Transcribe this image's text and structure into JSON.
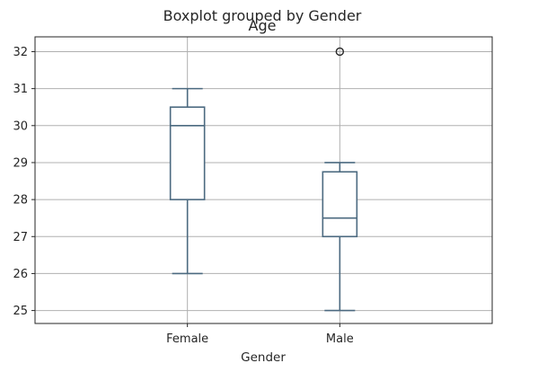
{
  "chart_data": {
    "type": "boxplot",
    "suptitle": "Boxplot grouped by Gender",
    "title": "Age",
    "xlabel": "Gender",
    "ylabel": "",
    "categories": [
      "Female",
      "Male"
    ],
    "boxes": [
      {
        "category": "Female",
        "whisker_low": 26,
        "q1": 28,
        "median": 30,
        "q3": 30.5,
        "whisker_high": 31,
        "outliers": []
      },
      {
        "category": "Male",
        "whisker_low": 25,
        "q1": 27,
        "median": 27.5,
        "q3": 28.75,
        "whisker_high": 29,
        "outliers": [
          32
        ]
      }
    ],
    "ylim": [
      24.65,
      32.4
    ],
    "yticks": [
      "25",
      "26",
      "27",
      "28",
      "29",
      "30",
      "31",
      "32"
    ],
    "grid": true,
    "colors": {
      "box": "#4c6a80",
      "grid": "#b0b0b0",
      "axes": "#262626"
    }
  }
}
